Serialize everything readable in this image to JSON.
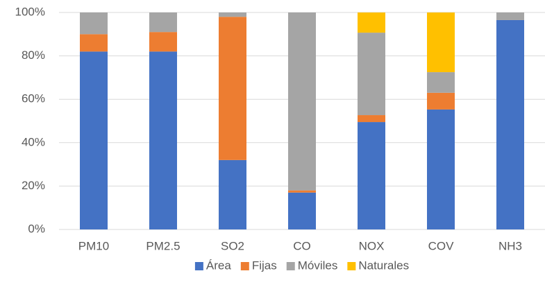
{
  "chart_data": {
    "type": "bar",
    "stacked": true,
    "categories": [
      "PM10",
      "PM2.5",
      "SO2",
      "CO",
      "NOX",
      "COV",
      "NH3"
    ],
    "series": [
      {
        "name": "Área",
        "color": "#4472c4",
        "values": [
          82,
          82,
          32,
          17,
          49.5,
          55.3,
          96.5
        ]
      },
      {
        "name": "Fijas",
        "color": "#ed7d31",
        "values": [
          8,
          9,
          66,
          1,
          3.2,
          7.7,
          0
        ]
      },
      {
        "name": "Móviles",
        "color": "#a5a5a5",
        "values": [
          10,
          9,
          2,
          82,
          38,
          9.5,
          3.5
        ]
      },
      {
        "name": "Naturales",
        "color": "#ffc000",
        "values": [
          0,
          0,
          0,
          0,
          9.3,
          27.5,
          0
        ]
      }
    ],
    "ylim": [
      0,
      100
    ],
    "yticks": [
      {
        "value": 0,
        "label": "0%"
      },
      {
        "value": 20,
        "label": "20%"
      },
      {
        "value": 40,
        "label": "40%"
      },
      {
        "value": 60,
        "label": "60%"
      },
      {
        "value": 80,
        "label": "80%"
      },
      {
        "value": 100,
        "label": "100%"
      }
    ],
    "grid": true,
    "legend": "bottom"
  }
}
